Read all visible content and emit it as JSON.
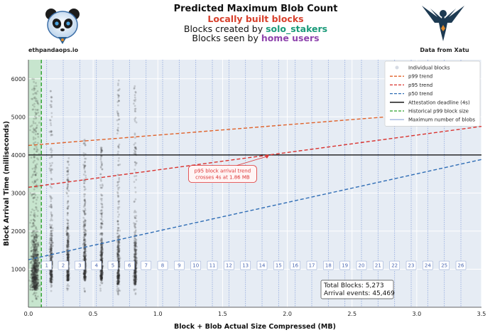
{
  "header": {
    "title": "Predicted Maximum Blob Count",
    "line1": "Locally built blocks",
    "line2_prefix": "Blocks created by ",
    "line2_highlight": "solo_stakers",
    "line3_prefix": "Blocks seen by ",
    "line3_highlight": "home users",
    "left_logo_label": "ethpandaops.io",
    "right_logo_label": "Data from Xatu",
    "left_logo_icon": "panda-icon",
    "right_logo_icon": "eagle-icon"
  },
  "chart_data": {
    "type": "scatter",
    "xlabel": "Block + Blob Actual Size Compressed (MB)",
    "ylabel": "Block Arrival Time (milliseconds)",
    "xlim": [
      0,
      3.5
    ],
    "ylim": [
      0,
      6500
    ],
    "x_ticks": [
      0.0,
      0.5,
      1.0,
      1.5,
      2.0,
      2.5,
      3.0,
      3.5
    ],
    "x_tick_labels": [
      "0.0",
      "0.5",
      "1.0",
      "1.5",
      "2.0",
      "2.5",
      "3.0",
      "3.5"
    ],
    "y_ticks": [
      1000,
      2000,
      3000,
      4000,
      5000,
      6000
    ],
    "y_tick_labels": [
      "1000",
      "2000",
      "3000",
      "4000",
      "5000",
      "6000"
    ],
    "grid": true,
    "legend_position": "top-right",
    "legend": [
      {
        "label": "Individual blocks",
        "style": "marker",
        "color": "#d6dbe4"
      },
      {
        "label": "p99 trend",
        "style": "dashed",
        "color": "#e0622a"
      },
      {
        "label": "p95 trend",
        "style": "dashed",
        "color": "#d9322e"
      },
      {
        "label": "p50 trend",
        "style": "dashed",
        "color": "#2f6db5"
      },
      {
        "label": "Attestation deadline (4s)",
        "style": "solid",
        "color": "#000000"
      },
      {
        "label": "Historical p99 block size",
        "style": "dashed",
        "color": "#2ca02c"
      },
      {
        "label": "Maximum number of blobs",
        "style": "solid",
        "color": "#9fb4e0"
      }
    ],
    "trend_lines": [
      {
        "name": "p99 trend",
        "x": [
          0,
          3.5
        ],
        "y": [
          4250,
          5200
        ],
        "color": "#e0622a"
      },
      {
        "name": "p95 trend",
        "x": [
          0,
          3.5
        ],
        "y": [
          3150,
          4750
        ],
        "color": "#d9322e"
      },
      {
        "name": "p50 trend",
        "x": [
          0,
          3.5
        ],
        "y": [
          1250,
          3880
        ],
        "color": "#2f6db5"
      }
    ],
    "attestation_deadline_ms": 4000,
    "historical_p99_block_size_mb": 0.1,
    "blob_lines_mb": [
      0.141,
      0.269,
      0.397,
      0.525,
      0.653,
      0.781,
      0.909,
      1.037,
      1.165,
      1.293,
      1.421,
      1.549,
      1.677,
      1.805,
      1.933,
      2.061,
      2.189,
      2.317,
      2.445,
      2.573,
      2.701,
      2.829,
      2.957,
      3.085,
      3.213,
      3.341
    ],
    "blob_labels": [
      "1",
      "2",
      "3",
      "4",
      "5",
      "6",
      "7",
      "8",
      "9",
      "10",
      "11",
      "12",
      "13",
      "14",
      "15",
      "16",
      "17",
      "18",
      "19",
      "20",
      "21",
      "22",
      "23",
      "24",
      "25",
      "26"
    ],
    "blob_label_y_ms": 1100,
    "scatter_clusters": [
      {
        "x": 0.05,
        "y_min": 150,
        "y_max": 6000,
        "width": 0.05
      },
      {
        "x": 0.175,
        "y_min": 350,
        "y_max": 5700,
        "width": 0.018
      },
      {
        "x": 0.305,
        "y_min": 400,
        "y_max": 4000,
        "width": 0.015
      },
      {
        "x": 0.435,
        "y_min": 400,
        "y_max": 4400,
        "width": 0.015
      },
      {
        "x": 0.565,
        "y_min": 400,
        "y_max": 4300,
        "width": 0.015
      },
      {
        "x": 0.695,
        "y_min": 300,
        "y_max": 6000,
        "width": 0.016
      },
      {
        "x": 0.825,
        "y_min": 300,
        "y_max": 5900,
        "width": 0.018
      }
    ],
    "annotation": {
      "text_line1": "p95 block arrival trend",
      "text_line2": "crosses 4s at 1.86 MB",
      "point_x": 1.86,
      "point_y": 4000,
      "text_x": 1.5,
      "text_y": 3500
    },
    "stats": {
      "line1": "Total Blocks: 5,273",
      "line2": "Arrival events: 45,469"
    }
  }
}
